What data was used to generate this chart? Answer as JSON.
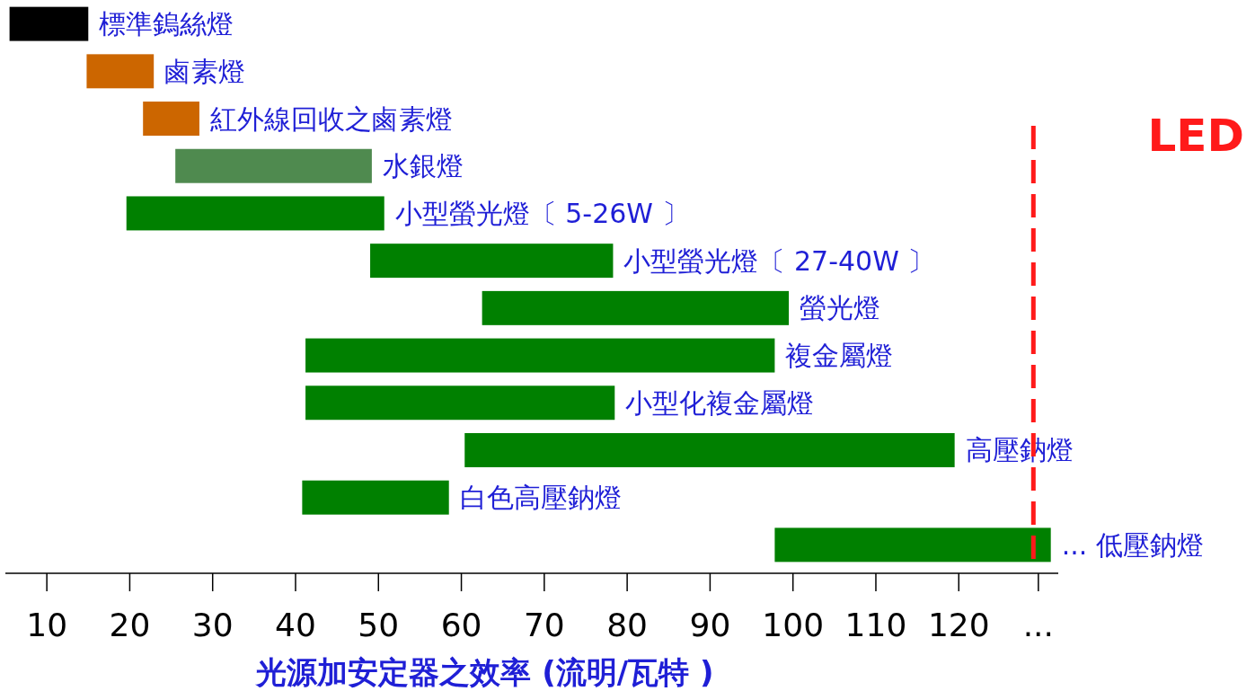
{
  "chart_data": {
    "type": "bar",
    "orientation": "horizontal",
    "categories": [
      "標準鎢絲燈",
      "鹵素燈",
      "紅外線回收之鹵素燈",
      "水銀燈",
      "小型螢光燈〔 5-26W 〕",
      "小型螢光燈〔 27-40W 〕",
      "螢光燈",
      "複金屬燈",
      "小型化複金屬燈",
      "高壓鈉燈",
      "白色高壓鈉燈",
      "...   低壓鈉燈"
    ],
    "base": [
      5.5,
      14.8,
      21.6,
      25.5,
      19.6,
      49,
      62.5,
      41.2,
      41.2,
      60.4,
      40.8,
      97.8
    ],
    "values": [
      9.5,
      8.1,
      6.8,
      23.7,
      31.1,
      29.3,
      37,
      56.6,
      37.3,
      59.1,
      17.7,
      33.3
    ],
    "colors": [
      "#000000",
      "#cc6600",
      "#cc6600",
      "#4f8a4f",
      "#008000",
      "#008000",
      "#008000",
      "#008000",
      "#008000",
      "#008000",
      "#008000",
      "#008000"
    ],
    "xlim": [
      5,
      132
    ],
    "xticks": [
      10,
      20,
      30,
      40,
      50,
      60,
      70,
      80,
      90,
      100,
      110,
      120,
      {
        "value": 129.6,
        "label": "..."
      }
    ],
    "xlabel": "光源加安定器之效率 (流明/瓦特 )",
    "ref_lines": [
      {
        "axis": "x",
        "value": 129,
        "label": "LED",
        "color": "#ff1a1a",
        "line_style": "dashed"
      }
    ]
  }
}
